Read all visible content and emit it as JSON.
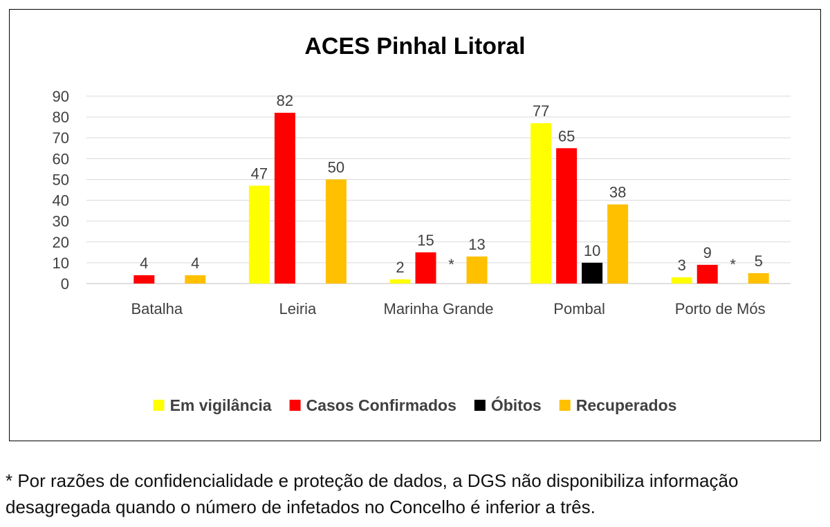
{
  "chart_data": {
    "type": "bar",
    "title": "ACES Pinhal Litoral",
    "xlabel": "",
    "ylabel": "",
    "ylim": [
      0,
      90
    ],
    "yticks": [
      0,
      10,
      20,
      30,
      40,
      50,
      60,
      70,
      80,
      90
    ],
    "grid": true,
    "legend_position": "bottom",
    "categories": [
      "Batalha",
      "Leiria",
      "Marinha Grande",
      "Pombal",
      "Porto de Mós"
    ],
    "series": [
      {
        "name": "Em vigilância",
        "color": "#ffff00",
        "values": [
          null,
          47,
          2,
          77,
          3
        ]
      },
      {
        "name": "Casos Confirmados",
        "color": "#ff0000",
        "values": [
          4,
          82,
          15,
          65,
          9
        ]
      },
      {
        "name": "Óbitos",
        "color": "#000000",
        "values": [
          null,
          null,
          "*",
          10,
          "*"
        ]
      },
      {
        "name": "Recuperados",
        "color": "#ffc000",
        "values": [
          4,
          50,
          13,
          38,
          5
        ]
      }
    ]
  },
  "footnote": "* Por razões de confidencialidade e proteção de dados, a DGS não disponibiliza informação desagregada quando o número de infetados no Concelho é inferior a três."
}
